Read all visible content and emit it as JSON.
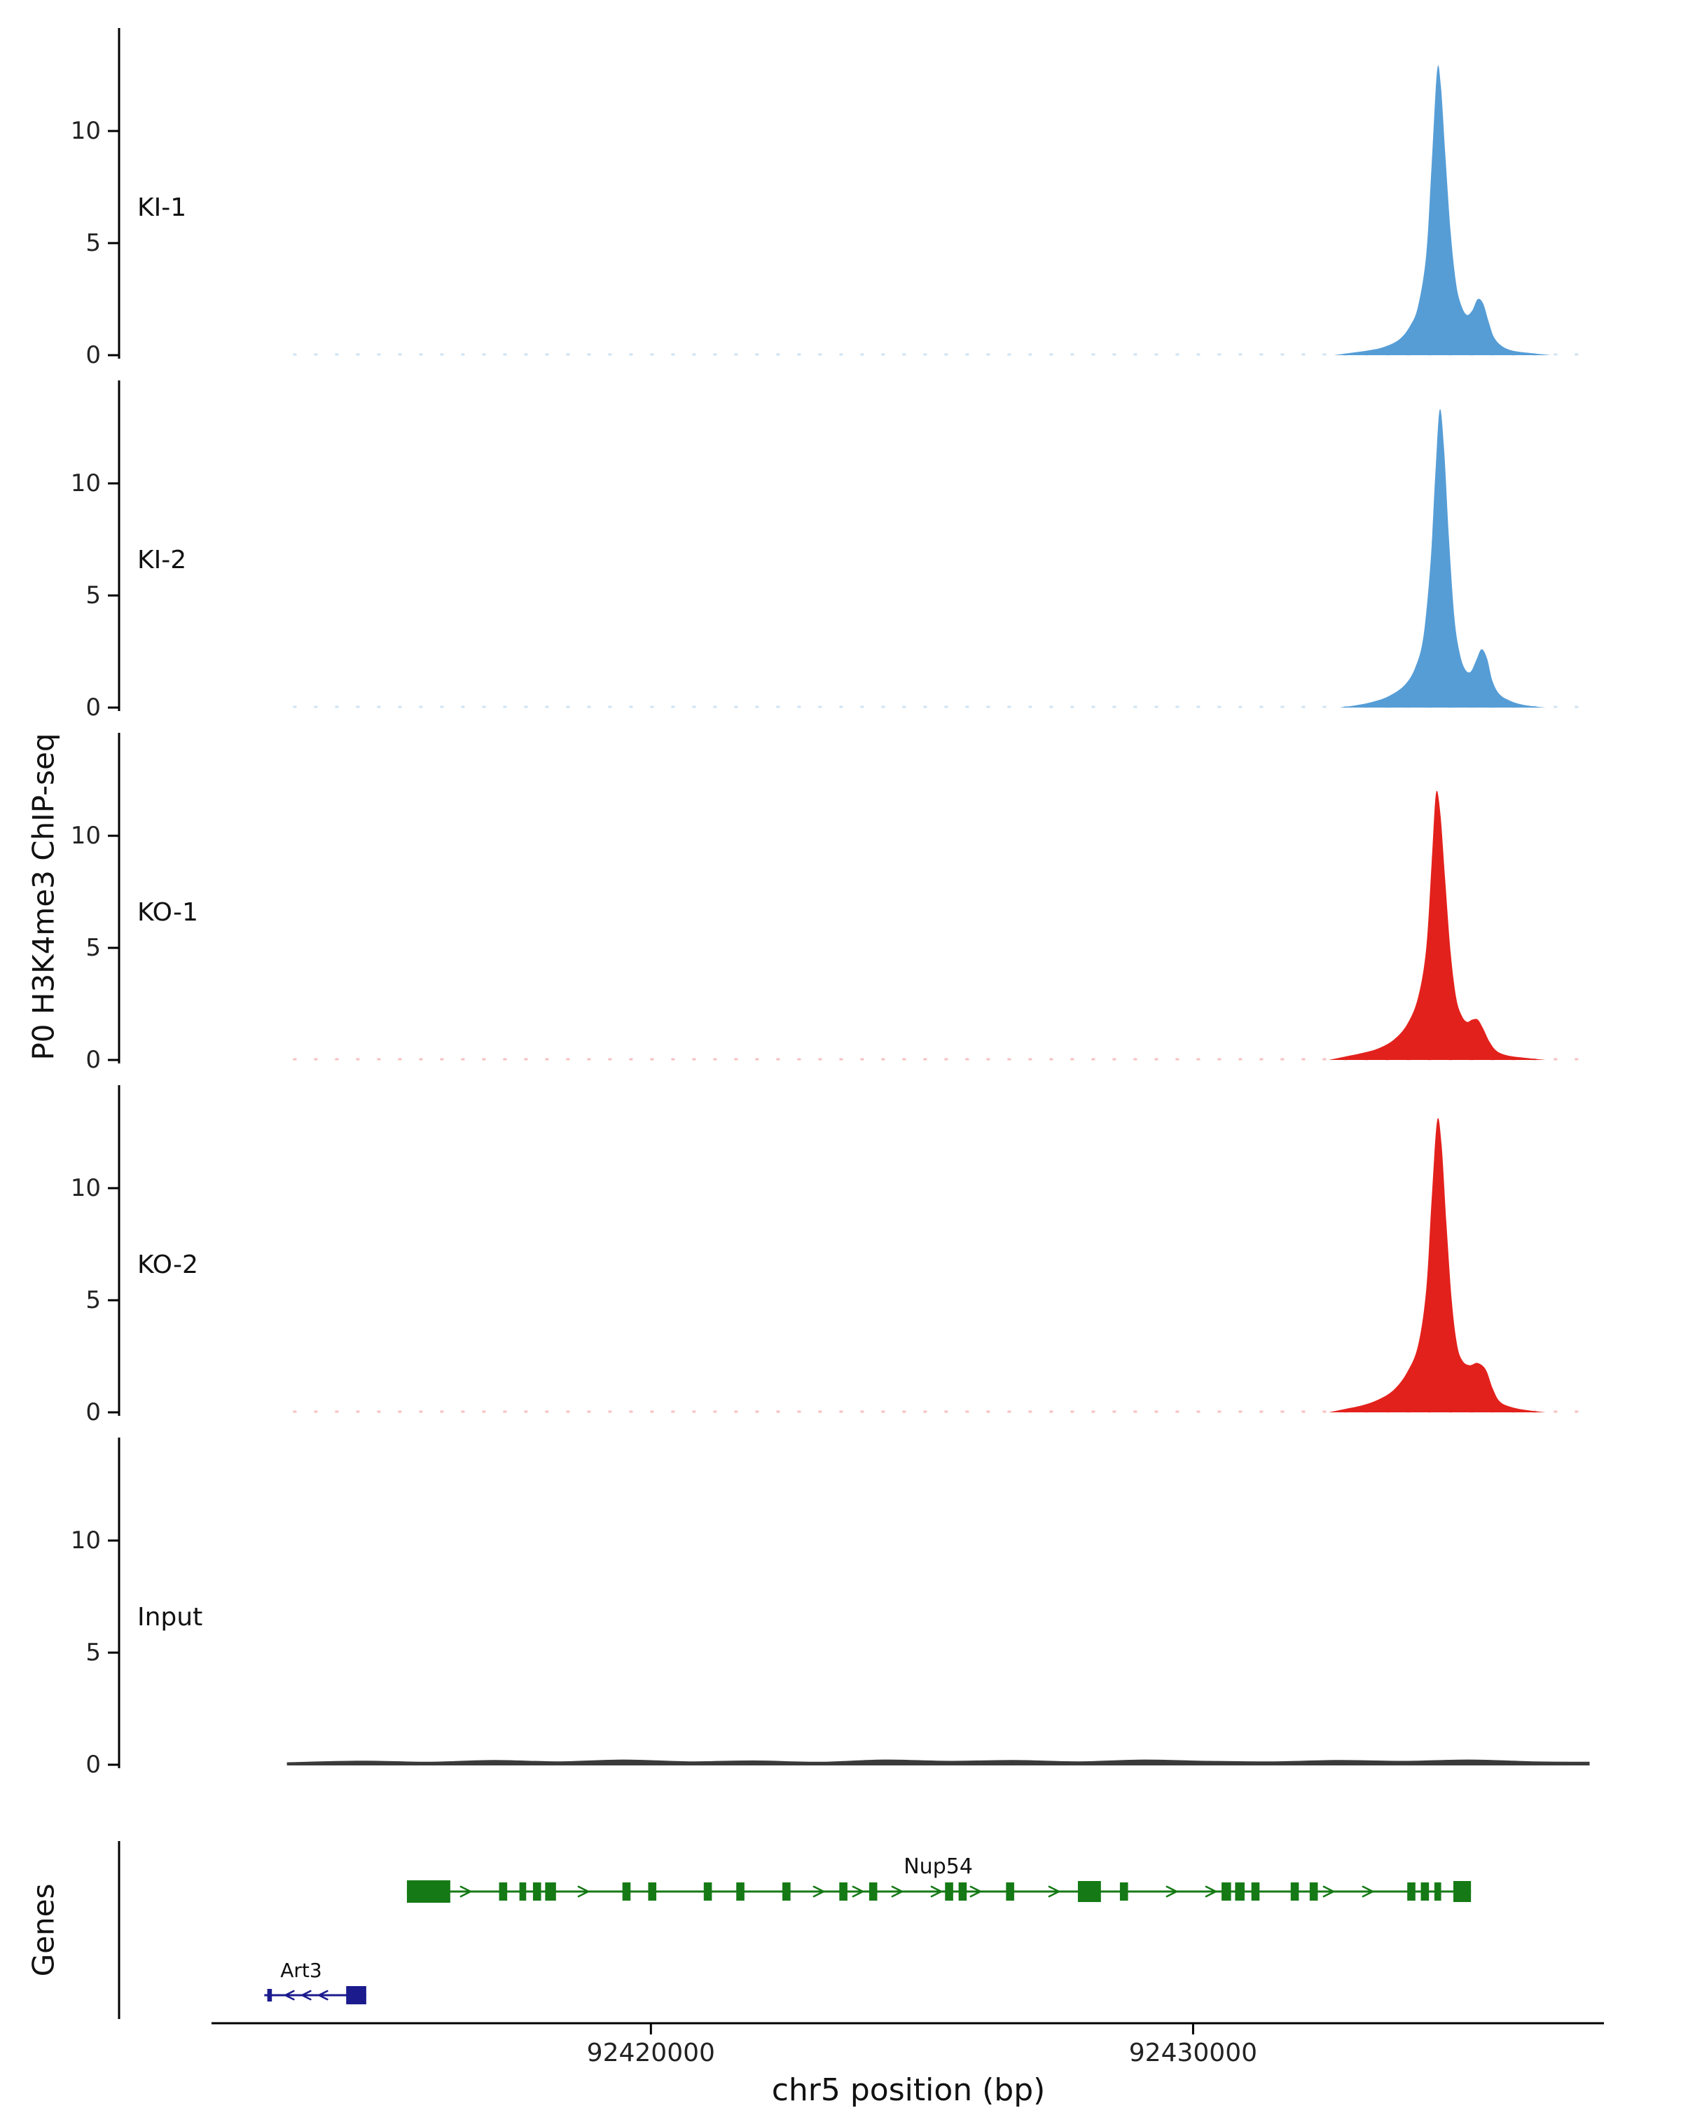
{
  "figure": {
    "ylabel": "P0 H3K4me3 ChIP-seq",
    "genes_label": "Genes",
    "xlabel": "chr5 position (bp)"
  },
  "chart_data": {
    "type": "area",
    "title": "",
    "xlabel": "chr5 position (bp)",
    "ylabel": "P0 H3K4me3 ChIP-seq",
    "x_domain": [
      92412000,
      92437500
    ],
    "x_ticks": [
      {
        "value": 92420000,
        "label": "92420000"
      },
      {
        "value": 92430000,
        "label": "92430000"
      }
    ],
    "y_ticks": [
      0,
      5,
      10
    ],
    "y_max": 14.5,
    "legend": "none",
    "grid": false,
    "tracks": [
      {
        "label": "KI-1",
        "color": "#569dd6",
        "points": [
          [
            92432600,
            0
          ],
          [
            92432900,
            0.1
          ],
          [
            92433200,
            0.2
          ],
          [
            92433500,
            0.35
          ],
          [
            92433800,
            0.7
          ],
          [
            92434000,
            1.3
          ],
          [
            92434150,
            2.2
          ],
          [
            92434300,
            4.5
          ],
          [
            92434400,
            8.5
          ],
          [
            92434500,
            12.7
          ],
          [
            92434570,
            12.0
          ],
          [
            92434650,
            9.0
          ],
          [
            92434750,
            5.5
          ],
          [
            92434850,
            3.2
          ],
          [
            92434950,
            2.2
          ],
          [
            92435050,
            1.8
          ],
          [
            92435150,
            2.0
          ],
          [
            92435250,
            2.5
          ],
          [
            92435350,
            2.3
          ],
          [
            92435450,
            1.5
          ],
          [
            92435550,
            0.8
          ],
          [
            92435700,
            0.4
          ],
          [
            92435900,
            0.2
          ],
          [
            92436200,
            0.1
          ],
          [
            92436600,
            0
          ]
        ]
      },
      {
        "label": "KI-2",
        "color": "#569dd6",
        "points": [
          [
            92432700,
            0
          ],
          [
            92433000,
            0.1
          ],
          [
            92433300,
            0.25
          ],
          [
            92433600,
            0.5
          ],
          [
            92433900,
            1.0
          ],
          [
            92434100,
            1.8
          ],
          [
            92434250,
            3.2
          ],
          [
            92434380,
            6.5
          ],
          [
            92434470,
            10.5
          ],
          [
            92434550,
            13.3
          ],
          [
            92434630,
            11.5
          ],
          [
            92434720,
            7.5
          ],
          [
            92434820,
            4.0
          ],
          [
            92434920,
            2.4
          ],
          [
            92435020,
            1.7
          ],
          [
            92435120,
            1.6
          ],
          [
            92435220,
            2.1
          ],
          [
            92435320,
            2.6
          ],
          [
            92435420,
            2.2
          ],
          [
            92435520,
            1.2
          ],
          [
            92435650,
            0.6
          ],
          [
            92435850,
            0.3
          ],
          [
            92436100,
            0.12
          ],
          [
            92436500,
            0
          ]
        ]
      },
      {
        "label": "KO-1",
        "color": "#e3211c",
        "points": [
          [
            92432500,
            0
          ],
          [
            92432800,
            0.15
          ],
          [
            92433100,
            0.3
          ],
          [
            92433400,
            0.5
          ],
          [
            92433700,
            0.9
          ],
          [
            92433950,
            1.6
          ],
          [
            92434150,
            2.8
          ],
          [
            92434300,
            5.0
          ],
          [
            92434400,
            8.8
          ],
          [
            92434480,
            11.9
          ],
          [
            92434560,
            11.0
          ],
          [
            92434650,
            8.0
          ],
          [
            92434750,
            4.8
          ],
          [
            92434850,
            2.8
          ],
          [
            92434950,
            2.0
          ],
          [
            92435050,
            1.7
          ],
          [
            92435150,
            1.8
          ],
          [
            92435250,
            1.8
          ],
          [
            92435350,
            1.4
          ],
          [
            92435470,
            0.8
          ],
          [
            92435600,
            0.4
          ],
          [
            92435800,
            0.2
          ],
          [
            92436100,
            0.1
          ],
          [
            92436500,
            0
          ]
        ]
      },
      {
        "label": "KO-2",
        "color": "#e3211c",
        "points": [
          [
            92432500,
            0
          ],
          [
            92432800,
            0.15
          ],
          [
            92433100,
            0.3
          ],
          [
            92433400,
            0.55
          ],
          [
            92433700,
            1.0
          ],
          [
            92433950,
            1.8
          ],
          [
            92434150,
            3.0
          ],
          [
            92434300,
            5.5
          ],
          [
            92434400,
            9.5
          ],
          [
            92434500,
            13.0
          ],
          [
            92434580,
            12.0
          ],
          [
            92434670,
            8.5
          ],
          [
            92434770,
            5.0
          ],
          [
            92434870,
            3.0
          ],
          [
            92434970,
            2.3
          ],
          [
            92435100,
            2.1
          ],
          [
            92435250,
            2.2
          ],
          [
            92435400,
            1.9
          ],
          [
            92435520,
            1.1
          ],
          [
            92435650,
            0.5
          ],
          [
            92435850,
            0.25
          ],
          [
            92436150,
            0.1
          ],
          [
            92436500,
            0
          ]
        ]
      },
      {
        "label": "Input",
        "color": "#3a3a3a",
        "points": [
          [
            92413300,
            0.08
          ],
          [
            92414700,
            0.15
          ],
          [
            92415900,
            0.1
          ],
          [
            92417100,
            0.18
          ],
          [
            92418300,
            0.12
          ],
          [
            92419500,
            0.2
          ],
          [
            92420700,
            0.12
          ],
          [
            92421900,
            0.16
          ],
          [
            92423100,
            0.1
          ],
          [
            92424300,
            0.2
          ],
          [
            92425500,
            0.14
          ],
          [
            92426700,
            0.18
          ],
          [
            92427900,
            0.12
          ],
          [
            92429100,
            0.2
          ],
          [
            92430300,
            0.14
          ],
          [
            92431500,
            0.12
          ],
          [
            92432700,
            0.18
          ],
          [
            92433900,
            0.14
          ],
          [
            92435100,
            0.2
          ],
          [
            92436300,
            0.12
          ],
          [
            92437300,
            0.1
          ]
        ]
      }
    ],
    "genes": [
      {
        "name": "Nup54",
        "strand": "-",
        "color": "#157a15",
        "line_start": 92415500,
        "line_end": 92435125,
        "label_x": 92425300,
        "exons": [
          [
            92415500,
            92416300,
            32
          ],
          [
            92417200,
            92417350,
            26
          ],
          [
            92417575,
            92417700,
            26
          ],
          [
            92417825,
            92417975,
            26
          ],
          [
            92418050,
            92418250,
            26
          ],
          [
            92419475,
            92419625,
            26
          ],
          [
            92419950,
            92420100,
            26
          ],
          [
            92420975,
            92421125,
            26
          ],
          [
            92421575,
            92421725,
            26
          ],
          [
            92422425,
            92422575,
            26
          ],
          [
            92423475,
            92423625,
            26
          ],
          [
            92424025,
            92424175,
            26
          ],
          [
            92425425,
            92425575,
            26
          ],
          [
            92425675,
            92425825,
            26
          ],
          [
            92426550,
            92426700,
            26
          ],
          [
            92427875,
            92428300,
            30
          ],
          [
            92428650,
            92428800,
            26
          ],
          [
            92430525,
            92430700,
            26
          ],
          [
            92430775,
            92430950,
            26
          ],
          [
            92431075,
            92431225,
            26
          ],
          [
            92431800,
            92431950,
            26
          ],
          [
            92432150,
            92432300,
            26
          ],
          [
            92433950,
            92434100,
            26
          ],
          [
            92434200,
            92434350,
            26
          ],
          [
            92434450,
            92434575,
            26
          ],
          [
            92434800,
            92435125,
            30
          ]
        ]
      },
      {
        "name": "Art3",
        "strand": "+",
        "color": "#1b1b8e",
        "line_start": 92412870,
        "line_end": 92414750,
        "label_x": 92413550,
        "exons": [
          [
            92412925,
            92413010,
            18
          ],
          [
            92414380,
            92414750,
            26
          ]
        ]
      }
    ]
  }
}
